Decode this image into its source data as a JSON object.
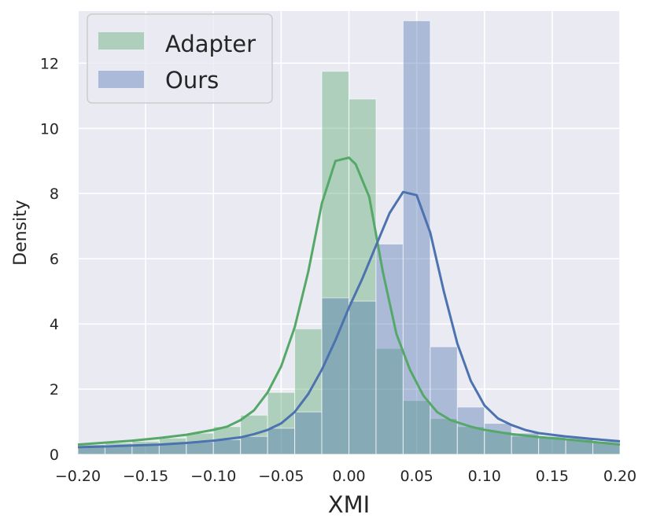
{
  "chart_data": {
    "type": "bar",
    "xlabel": "XMI",
    "ylabel": "Density",
    "xlim": [
      -0.2,
      0.2
    ],
    "ylim": [
      0,
      13.6
    ],
    "grid": true,
    "legend_position": "top-left",
    "x_ticks": [
      "−0.20",
      "−0.15",
      "−0.10",
      "−0.05",
      "0.00",
      "0.05",
      "0.10",
      "0.15",
      "0.20"
    ],
    "x_tick_values": [
      -0.2,
      -0.15,
      -0.1,
      -0.05,
      0.0,
      0.05,
      0.1,
      0.15,
      0.2
    ],
    "y_ticks": [
      "0",
      "2",
      "4",
      "6",
      "8",
      "10",
      "12"
    ],
    "y_tick_values": [
      0,
      2,
      4,
      6,
      8,
      10,
      12
    ],
    "bin_edges": [
      -0.2,
      -0.18,
      -0.16,
      -0.14,
      -0.12,
      -0.1,
      -0.08,
      -0.06,
      -0.04,
      -0.02,
      0.0,
      0.02,
      0.04,
      0.06,
      0.08,
      0.1,
      0.12,
      0.14,
      0.16,
      0.18,
      0.2
    ],
    "series": [
      {
        "name": "Adapter",
        "color": "#55a868",
        "histogram": [
          0.3,
          0.35,
          0.4,
          0.5,
          0.65,
          0.85,
          1.2,
          1.9,
          3.85,
          11.75,
          10.9,
          3.25,
          1.65,
          1.1,
          0.85,
          0.7,
          0.55,
          0.5,
          0.45,
          0.35
        ],
        "kde_x": [
          -0.2,
          -0.18,
          -0.16,
          -0.14,
          -0.12,
          -0.1,
          -0.09,
          -0.08,
          -0.07,
          -0.06,
          -0.05,
          -0.04,
          -0.03,
          -0.02,
          -0.01,
          0.0,
          0.005,
          0.015,
          0.025,
          0.035,
          0.045,
          0.055,
          0.065,
          0.075,
          0.09,
          0.1,
          0.12,
          0.14,
          0.16,
          0.18,
          0.2
        ],
        "kde_y": [
          0.3,
          0.36,
          0.42,
          0.5,
          0.6,
          0.75,
          0.85,
          1.05,
          1.35,
          1.9,
          2.7,
          3.9,
          5.6,
          7.7,
          9.0,
          9.1,
          8.9,
          7.9,
          5.6,
          3.7,
          2.6,
          1.8,
          1.3,
          1.05,
          0.85,
          0.75,
          0.62,
          0.53,
          0.46,
          0.38,
          0.3
        ]
      },
      {
        "name": "Ours",
        "color": "#4c72b0",
        "histogram": [
          0.25,
          0.28,
          0.3,
          0.33,
          0.38,
          0.45,
          0.55,
          0.8,
          1.3,
          4.8,
          4.7,
          6.45,
          13.3,
          3.3,
          1.45,
          0.95,
          0.65,
          0.55,
          0.5,
          0.4
        ],
        "kde_x": [
          -0.2,
          -0.18,
          -0.16,
          -0.14,
          -0.12,
          -0.1,
          -0.08,
          -0.07,
          -0.06,
          -0.05,
          -0.04,
          -0.03,
          -0.02,
          -0.01,
          0.0,
          0.01,
          0.02,
          0.03,
          0.04,
          0.05,
          0.06,
          0.07,
          0.08,
          0.09,
          0.1,
          0.11,
          0.12,
          0.13,
          0.14,
          0.16,
          0.18,
          0.2
        ],
        "kde_y": [
          0.22,
          0.24,
          0.27,
          0.3,
          0.35,
          0.42,
          0.52,
          0.62,
          0.75,
          0.95,
          1.3,
          1.85,
          2.6,
          3.5,
          4.5,
          5.4,
          6.4,
          7.4,
          8.05,
          7.95,
          6.8,
          5.0,
          3.4,
          2.25,
          1.5,
          1.1,
          0.9,
          0.75,
          0.65,
          0.55,
          0.47,
          0.4
        ]
      }
    ]
  }
}
